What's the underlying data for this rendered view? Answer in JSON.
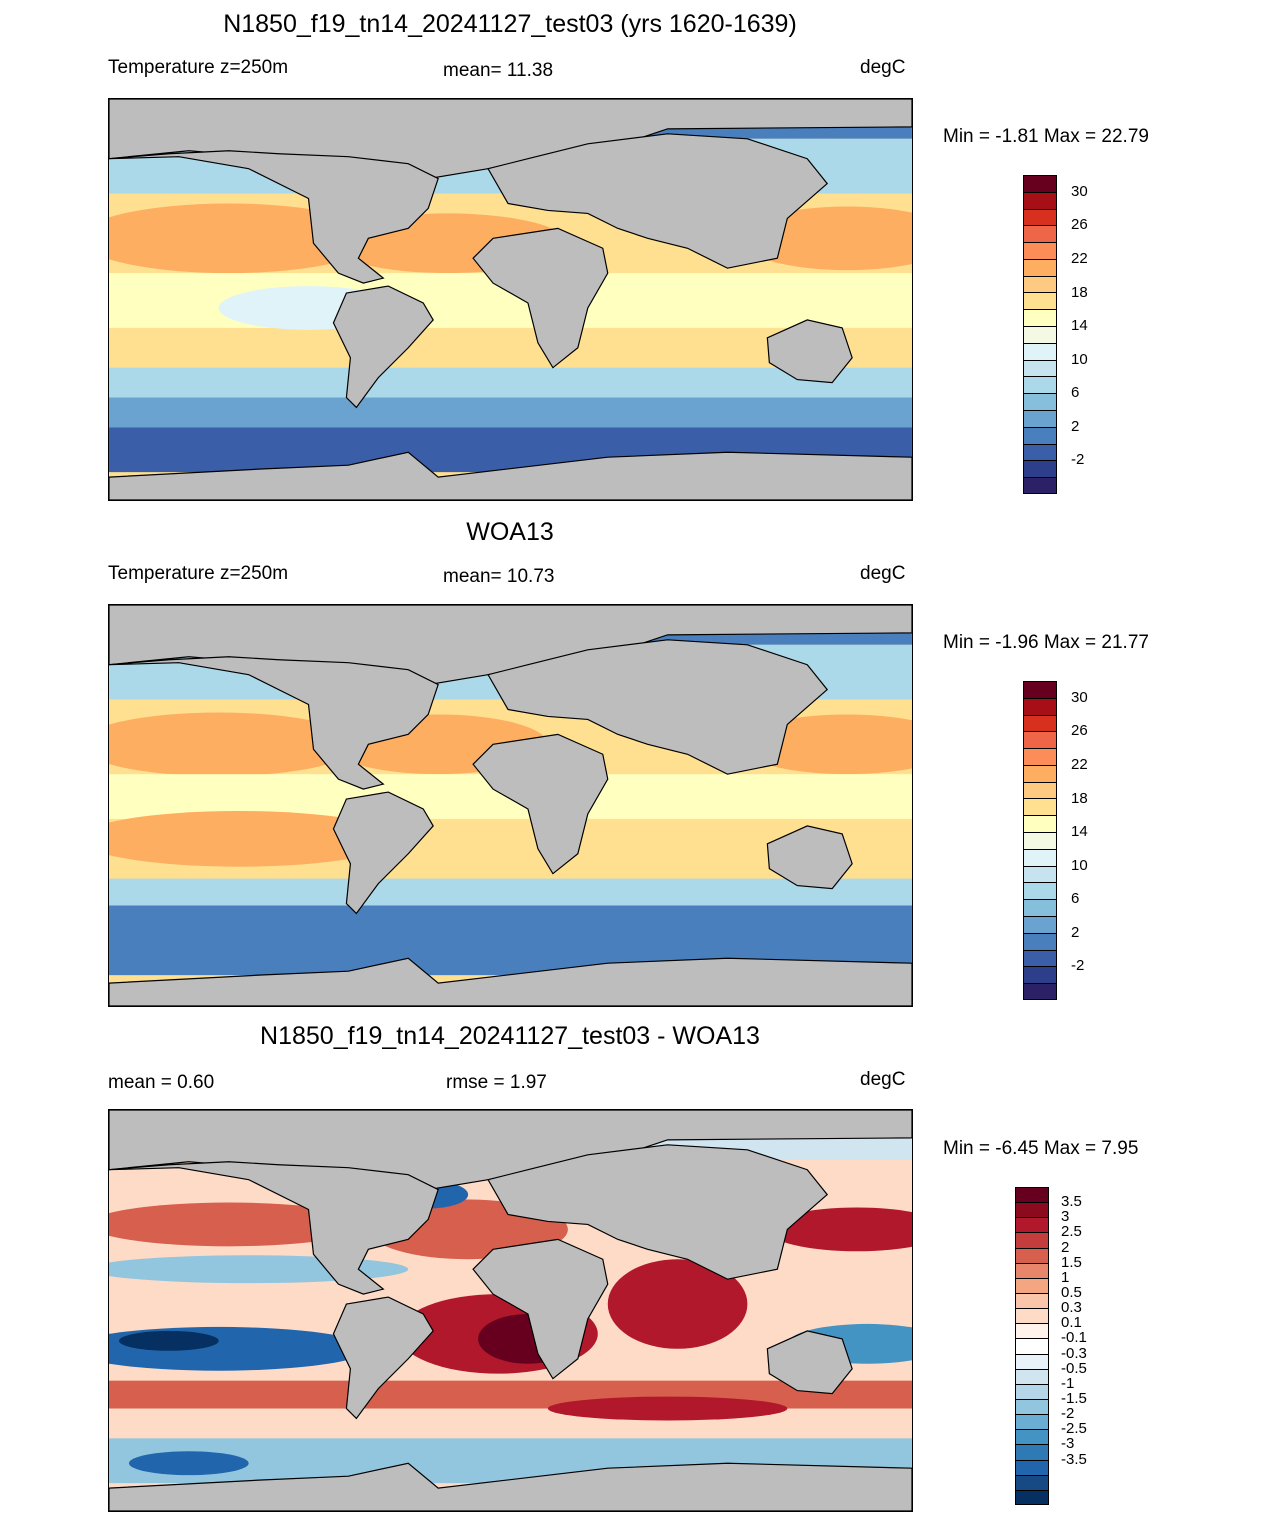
{
  "panels": [
    {
      "title": "N1850_f19_tn14_20241127_test03 (yrs 1620-1639)",
      "left_label": "Temperature z=250m",
      "center_label": "mean=  11.38",
      "units": "degC",
      "minmax": "Min =  -1.81 Max =  22.79",
      "colorbar": {
        "colors": [
          "#67001f",
          "#a50f15",
          "#d7301f",
          "#ef6548",
          "#fc8d59",
          "#fdae61",
          "#fec980",
          "#fee090",
          "#ffffbf",
          "#f4f9e4",
          "#e0f3f8",
          "#c6e3ef",
          "#abd9e9",
          "#86bfdc",
          "#6aa3d0",
          "#4a7fbe",
          "#3b5ea8",
          "#2d3f8a",
          "#2c2166"
        ],
        "labels": [
          "30",
          "26",
          "22",
          "18",
          "14",
          "10",
          "6",
          "2",
          "-2"
        ]
      }
    },
    {
      "title": "WOA13",
      "left_label": "Temperature z=250m",
      "center_label": "mean=  10.73",
      "units": "degC",
      "minmax": "Min =  -1.96 Max =  21.77",
      "colorbar": {
        "colors": [
          "#67001f",
          "#a50f15",
          "#d7301f",
          "#ef6548",
          "#fc8d59",
          "#fdae61",
          "#fec980",
          "#fee090",
          "#ffffbf",
          "#f4f9e4",
          "#e0f3f8",
          "#c6e3ef",
          "#abd9e9",
          "#86bfdc",
          "#6aa3d0",
          "#4a7fbe",
          "#3b5ea8",
          "#2d3f8a",
          "#2c2166"
        ],
        "labels": [
          "30",
          "26",
          "22",
          "18",
          "14",
          "10",
          "6",
          "2",
          "-2"
        ]
      }
    },
    {
      "title": "N1850_f19_tn14_20241127_test03 - WOA13",
      "left_label": "mean =   0.60",
      "center_label": "rmse =   1.97",
      "units": "degC",
      "minmax": "Min =  -6.45 Max =    7.95",
      "colorbar": {
        "colors": [
          "#67001f",
          "#8b0a1e",
          "#b2182b",
          "#c43c3c",
          "#d6604d",
          "#e7866a",
          "#f4a582",
          "#f9c5ab",
          "#fddbc7",
          "#fff3ec",
          "#ffffff",
          "#e9f2f8",
          "#d1e5f0",
          "#b4d6e8",
          "#92c5de",
          "#6aaed4",
          "#4393c3",
          "#2f79b5",
          "#2166ac",
          "#174a85",
          "#053061"
        ],
        "labels": [
          "3.5",
          "3",
          "2.5",
          "2",
          "1.5",
          "1",
          "0.5",
          "0.3",
          "0.1",
          "-0.1",
          "-0.3",
          "-0.5",
          "-1",
          "-1.5",
          "-2",
          "-2.5",
          "-3",
          "-3.5"
        ]
      }
    }
  ]
}
